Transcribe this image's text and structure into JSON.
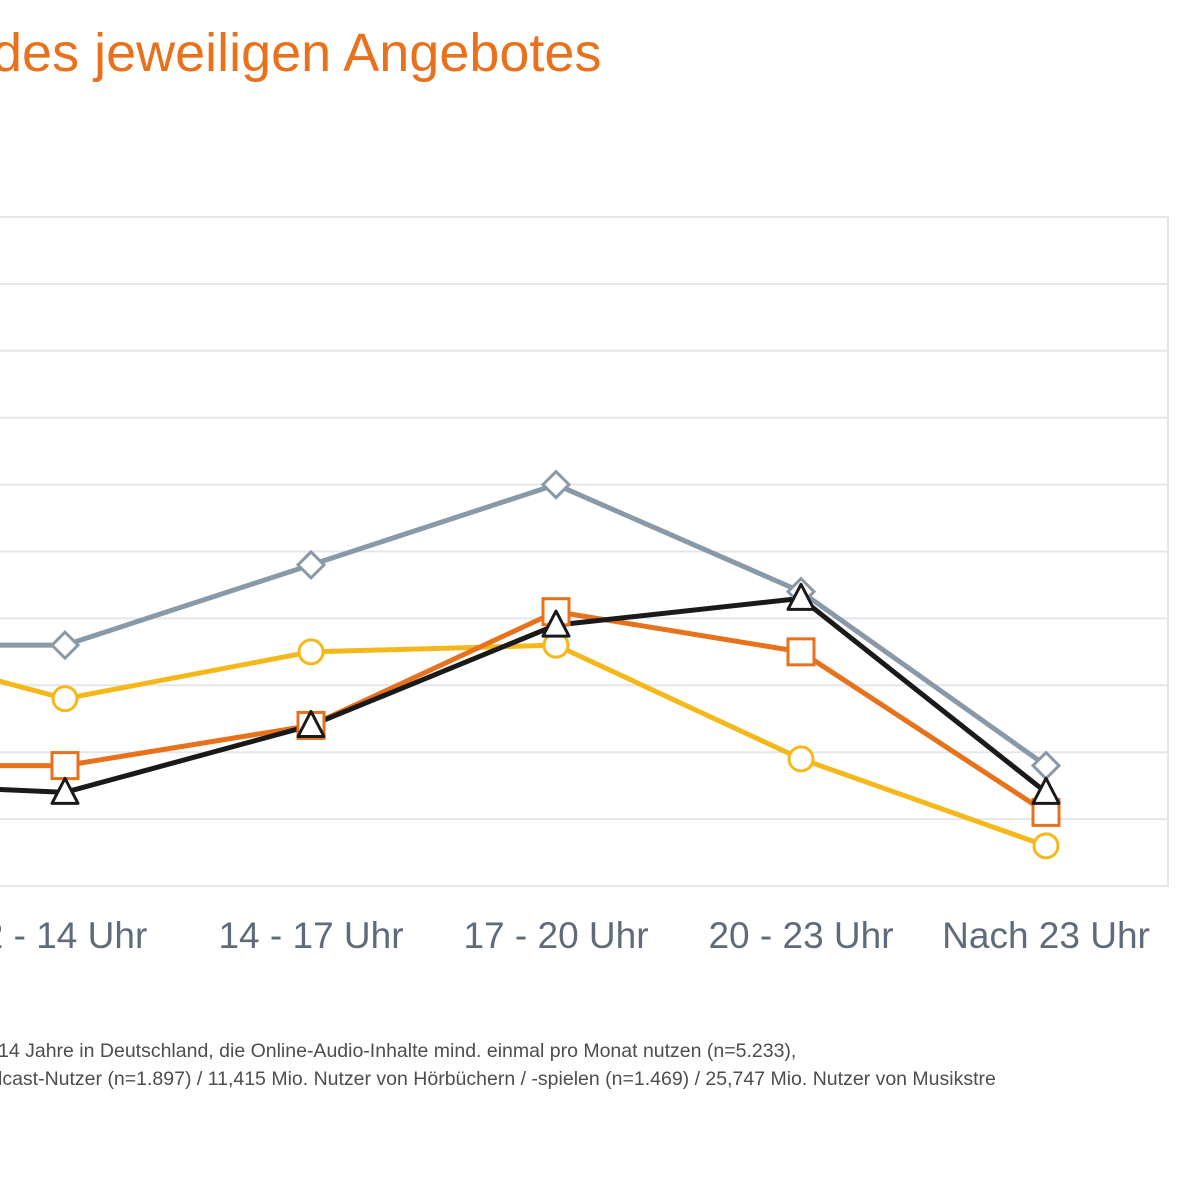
{
  "title": "des jeweiligen Angebotes",
  "footnote": {
    "line1": "14 Jahre in Deutschland, die Online-Audio-Inhalte mind. einmal pro Monat nutzen (n=5.233),",
    "line2": "lcast-Nutzer (n=1.897) / 11,415 Mio. Nutzer von Hörbüchern / -spielen (n=1.469) / 25,747 Mio. Nutzer von Musikstre"
  },
  "colors": {
    "title": "#e8711c",
    "grid": "#e3e6ea",
    "tick_label": "#5f6b7a"
  },
  "chart_data": {
    "type": "line",
    "categories": [
      "2 - 14 Uhr",
      "14 - 17 Uhr",
      "17 - 20 Uhr",
      "20 - 23 Uhr",
      "Nach 23 Uhr"
    ],
    "ylim": [
      0,
      10
    ],
    "grid": true,
    "series": [
      {
        "marker": "diamond",
        "color": "#8a99a8",
        "values": [
          3.6,
          4.8,
          6.0,
          4.4,
          1.8
        ],
        "left_edge_value": 3.6
      },
      {
        "marker": "circle",
        "color": "#f4b81a",
        "values": [
          2.8,
          3.5,
          3.6,
          1.9,
          0.6
        ],
        "left_edge_value": 3.1
      },
      {
        "marker": "square",
        "color": "#e8711c",
        "values": [
          1.8,
          2.4,
          4.1,
          3.5,
          1.1
        ],
        "left_edge_value": 1.8
      },
      {
        "marker": "triangle",
        "color": "#1a1a1a",
        "values": [
          1.4,
          2.4,
          3.9,
          4.3,
          1.4
        ],
        "left_edge_value": 1.45
      }
    ]
  }
}
